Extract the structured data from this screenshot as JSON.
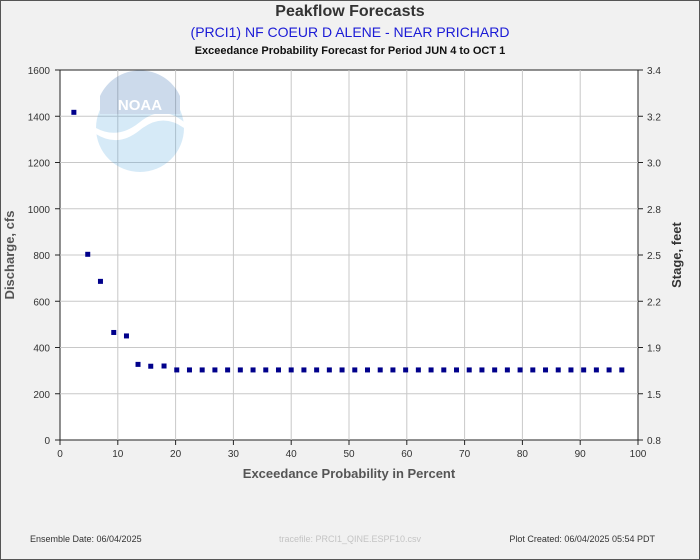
{
  "title": "Peakflow Forecasts",
  "subtitle": "(PRCI1) NF COEUR D ALENE - NEAR PRICHARD",
  "period_title": "Exceedance Probability Forecast for Period JUN 4 to OCT 1",
  "footer": {
    "ensemble_date": "Ensemble Date: 06/04/2025",
    "tracefile": "tracefile: PRCI1_QINE.ESPF10.csv",
    "plot_created": "Plot Created: 06/04/2025 05:54 PDT"
  },
  "logo": {
    "text": "NOAA"
  },
  "colors": {
    "point": "#00008b",
    "grid": "#c8c8c8",
    "plot_bg": "#ffffff",
    "page_bg": "#f1f1f1",
    "subtitle": "#1a1ad6"
  },
  "chart_data": {
    "type": "scatter",
    "xlabel": "Exceedance Probability in Percent",
    "ylabel": "Discharge, cfs",
    "y2label": "Stage, feet",
    "xlim": [
      0,
      100
    ],
    "ylim": [
      0,
      1600
    ],
    "x_ticks": [
      0,
      10,
      20,
      30,
      40,
      50,
      60,
      70,
      80,
      90,
      100
    ],
    "y_ticks": [
      0,
      200,
      400,
      600,
      800,
      1000,
      1200,
      1400,
      1600
    ],
    "y2_ticks": [
      "0.8",
      "1.5",
      "1.9",
      "2.2",
      "2.5",
      "2.8",
      "3.0",
      "3.2",
      "3.4"
    ],
    "grid": true,
    "x": [
      2.4,
      4.8,
      7.0,
      9.3,
      11.5,
      13.5,
      15.7,
      18.0,
      20.2,
      22.4,
      24.6,
      26.8,
      29.0,
      31.2,
      33.4,
      35.6,
      37.8,
      40.0,
      42.2,
      44.4,
      46.6,
      48.8,
      51.0,
      53.2,
      55.4,
      57.6,
      59.8,
      62.0,
      64.2,
      66.4,
      68.6,
      70.8,
      73.0,
      75.2,
      77.4,
      79.6,
      81.8,
      84.0,
      86.2,
      88.4,
      90.6,
      92.8,
      95.0,
      97.2
    ],
    "y": [
      1417,
      803,
      686,
      465,
      450,
      327,
      319,
      320,
      303,
      303,
      303,
      303,
      303,
      303,
      303,
      303,
      303,
      303,
      303,
      303,
      303,
      303,
      303,
      303,
      303,
      303,
      303,
      303,
      303,
      303,
      303,
      303,
      303,
      303,
      303,
      303,
      303,
      303,
      303,
      303,
      303,
      303,
      303,
      303
    ]
  }
}
